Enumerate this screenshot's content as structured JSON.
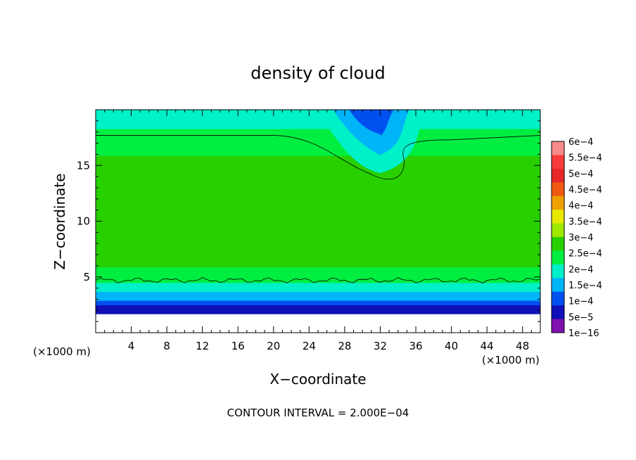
{
  "chart_data": {
    "type": "heatmap",
    "title": "density of cloud",
    "xlabel": "X−coordinate",
    "ylabel": "Z−coordinate",
    "x_unit_left": "(×1000 m)",
    "x_unit_right": "(×1000 m)",
    "footer": "CONTOUR INTERVAL = 2.000E−04",
    "xlim": [
      0,
      50
    ],
    "ylim": [
      0,
      20
    ],
    "x_ticks": [
      4,
      8,
      12,
      16,
      20,
      24,
      28,
      32,
      36,
      40,
      44,
      48
    ],
    "y_ticks": [
      5,
      10,
      15
    ],
    "x_tick_labels": [
      "4",
      "8",
      "12",
      "16",
      "20",
      "24",
      "28",
      "32",
      "36",
      "40",
      "44",
      "48"
    ],
    "y_tick_labels": [
      "5",
      "10",
      "15"
    ],
    "colorbar": {
      "labels": [
        "6e−4",
        "5.5e−4",
        "5e−4",
        "4.5e−4",
        "4e−4",
        "3.5e−4",
        "3e−4",
        "2.5e−4",
        "2e−4",
        "1.5e−4",
        "1e−4",
        "5e−5",
        "1e−16"
      ],
      "colors": [
        "#f88c8c",
        "#f83c3c",
        "#e82828",
        "#f05a10",
        "#f0a000",
        "#e8e800",
        "#a0e800",
        "#28d000",
        "#00ee40",
        "#00f0c8",
        "#00b4f8",
        "#0050f0",
        "#1010b8",
        "#8010b0"
      ]
    },
    "profile": {
      "z": [
        1.7,
        2.4,
        3.0,
        4.0,
        4.8,
        6.0,
        8.0,
        10.0,
        12.0,
        14.0,
        16.0,
        17.8,
        18.6,
        19.5
      ],
      "value": [
        0.0,
        4e-05,
        0.0001,
        0.00016,
        0.0002,
        0.000235,
        0.00026,
        0.000275,
        0.00026,
        0.000245,
        0.00023,
        0.0002,
        0.00017,
        0.00015
      ]
    },
    "plume": {
      "x_range": [
        24,
        38
      ],
      "z_min": 13.5,
      "min_value": 5e-05
    },
    "contour_level": 0.0002
  }
}
